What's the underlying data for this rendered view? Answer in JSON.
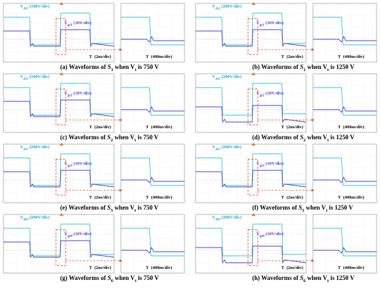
{
  "panels": [
    {
      "id": "a",
      "caption_prefix": "(a) Waveforms of ",
      "sw": "S",
      "sw_sub": "1",
      "caption_mid": " when V",
      "v_sub": "t",
      "caption_end": " is 750 V",
      "vds": "V",
      "vds_sub": "ds1",
      "vds_scale": "(100V/div)",
      "vgs": "V",
      "vgs_sub": "gs1",
      "vgs_scale": "(10V/div)",
      "t_main": "(2us/div)",
      "t_zoom": "(400ns/div)",
      "t_mark": "T"
    },
    {
      "id": "b",
      "caption_prefix": "(b) Waveforms of ",
      "sw": "S",
      "sw_sub": "1",
      "caption_mid": " when V",
      "v_sub": "t",
      "caption_end": " is 1250 V",
      "vds": "V",
      "vds_sub": "ds1",
      "vds_scale": "(200V/div)",
      "vgs": "V",
      "vgs_sub": "gs1",
      "vgs_scale": "(10V/div)",
      "t_main": "(2us/div)",
      "t_zoom": "(400ns/div)",
      "t_mark": "T"
    },
    {
      "id": "c",
      "caption_prefix": "(c) Waveforms of ",
      "sw": "S",
      "sw_sub": "2",
      "caption_mid": " when V",
      "v_sub": "t",
      "caption_end": " is 750 V",
      "vds": "V",
      "vds_sub": "ds2",
      "vds_scale": "(100V/div)",
      "vgs": "V",
      "vgs_sub": "gs2",
      "vgs_scale": "(10V/div)",
      "t_main": "(2us/div)",
      "t_zoom": "(400ns/div)",
      "t_mark": "T"
    },
    {
      "id": "d",
      "caption_prefix": "(d) Waveforms of ",
      "sw": "S",
      "sw_sub": "2",
      "caption_mid": " when V",
      "v_sub": "t",
      "caption_end": " is 1250 V",
      "vds": "V",
      "vds_sub": "ds2",
      "vds_scale": "(200V/div)",
      "vgs": "V",
      "vgs_sub": "gs2",
      "vgs_scale": "(10V/div)",
      "t_main": "(2us/div)",
      "t_zoom": "(400ns/div)",
      "t_mark": "T"
    },
    {
      "id": "e",
      "caption_prefix": "(e) Waveforms of ",
      "sw": "S",
      "sw_sub": "5",
      "caption_mid": " when V",
      "v_sub": "t",
      "caption_end": " is 750 V",
      "vds": "V",
      "vds_sub": "ds5",
      "vds_scale": "(200V/div)",
      "vgs": "V",
      "vgs_sub": "gs5",
      "vgs_scale": "(10V/div)",
      "t_main": "(2us/div)",
      "t_zoom": "(400ns/div)",
      "t_mark": "T"
    },
    {
      "id": "f",
      "caption_prefix": "(f) Waveforms of ",
      "sw": "S",
      "sw_sub": "5",
      "caption_mid": " when V",
      "v_sub": "t",
      "caption_end": " is 1250 V",
      "vds": "V",
      "vds_sub": "ds5",
      "vds_scale": "(200V/div)",
      "vgs": "V",
      "vgs_sub": "gs5",
      "vgs_scale": "(10V/div)",
      "t_main": "(2us/div)",
      "t_zoom": "(400ns/div)",
      "t_mark": "T"
    },
    {
      "id": "g",
      "caption_prefix": "(g) Waveforms of ",
      "sw": "S",
      "sw_sub": "6",
      "caption_mid": " when V",
      "v_sub": "t",
      "caption_end": " is 750 V",
      "vds": "V",
      "vds_sub": "ds6",
      "vds_scale": "(200V/div)",
      "vgs": "V",
      "vgs_sub": "gs6",
      "vgs_scale": "(10V/div)",
      "t_main": "(2us/div)",
      "t_zoom": "(400ns/div)",
      "t_mark": "T"
    },
    {
      "id": "h",
      "caption_prefix": "(h) Waveforms of ",
      "sw": "S",
      "sw_sub": "6",
      "caption_mid": " when V",
      "v_sub": "t",
      "caption_end": " is 1250 V",
      "vds": "V",
      "vds_sub": "ds6",
      "vds_scale": "(200V/div)",
      "vgs": "V",
      "vgs_sub": "gs6",
      "vgs_scale": "(10V/div)",
      "t_main": "(2us/div)",
      "t_zoom": "(400ns/div)",
      "t_mark": "T"
    }
  ],
  "colors": {
    "vds": "#2fc4e0",
    "vgs": "#4a3fd0",
    "zoom_box": "#e0502a",
    "grid": "#c8c8c8"
  }
}
